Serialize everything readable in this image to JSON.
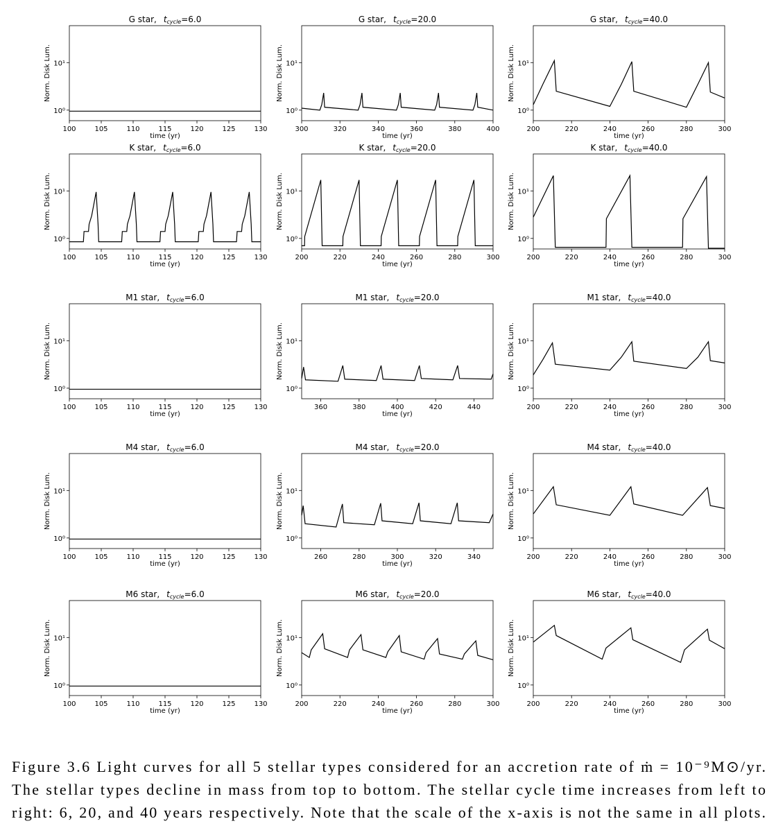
{
  "chart_data": [
    {
      "type": "line",
      "title": {
        "star": "G star,",
        "t": "t",
        "sub": "cycle",
        "eq": "=6.0"
      },
      "xlabel": "time (yr)",
      "ylabel": "Norm. Disk Lum.",
      "log_y": true,
      "color": "#000000",
      "xlim": [
        100,
        130
      ],
      "xticks": [
        100,
        105,
        110,
        115,
        120,
        125,
        130
      ],
      "ylim": [
        0.6,
        60
      ],
      "yticks": [
        {
          "value": 1,
          "label": "10⁰"
        },
        {
          "value": 10,
          "label": "10¹"
        }
      ],
      "x": [
        100,
        130
      ],
      "values": [
        0.95,
        0.95
      ]
    },
    {
      "type": "line",
      "title": {
        "star": "G star,",
        "t": "t",
        "sub": "cycle",
        "eq": "=20.0"
      },
      "xlabel": "time (yr)",
      "ylabel": "Norm. Disk Lum.",
      "log_y": true,
      "color": "#000000",
      "xlim": [
        300,
        400
      ],
      "xticks": [
        300,
        320,
        340,
        360,
        380,
        400
      ],
      "ylim": [
        0.6,
        60
      ],
      "yticks": [
        {
          "value": 1,
          "label": "10⁰"
        },
        {
          "value": 10,
          "label": "10¹"
        }
      ],
      "x": [
        300,
        309.5,
        310.5,
        311.5,
        312,
        329.5,
        330.5,
        331.5,
        332,
        349.5,
        350.5,
        351.5,
        352,
        369.5,
        370.5,
        371.5,
        372,
        389.5,
        390.5,
        391.5,
        392,
        400
      ],
      "values": [
        1.1,
        1.0,
        1.3,
        2.3,
        1.15,
        1.0,
        1.3,
        2.3,
        1.15,
        1.0,
        1.3,
        2.3,
        1.15,
        1.0,
        1.3,
        2.3,
        1.15,
        1.0,
        1.3,
        2.3,
        1.15,
        1.0
      ]
    },
    {
      "type": "line",
      "title": {
        "star": "G star,",
        "t": "t",
        "sub": "cycle",
        "eq": "=40.0"
      },
      "xlabel": "time (yr)",
      "ylabel": "Norm. Disk Lum.",
      "log_y": true,
      "color": "#000000",
      "xlim": [
        200,
        300
      ],
      "xticks": [
        200,
        220,
        240,
        260,
        280,
        300
      ],
      "ylim": [
        0.6,
        60
      ],
      "yticks": [
        {
          "value": 1,
          "label": "10⁰"
        },
        {
          "value": 10,
          "label": "10¹"
        }
      ],
      "x": [
        200,
        205,
        211,
        212,
        240,
        246,
        251.5,
        252.5,
        280,
        286,
        291.5,
        292.5,
        300
      ],
      "values": [
        1.3,
        3.5,
        11,
        2.5,
        1.2,
        3.5,
        10.5,
        2.5,
        1.15,
        3.5,
        10,
        2.4,
        1.8
      ]
    },
    {
      "type": "line",
      "title": {
        "star": "K star,",
        "t": "t",
        "sub": "cycle",
        "eq": "=6.0"
      },
      "xlabel": "time (yr)",
      "ylabel": "Norm. Disk Lum.",
      "log_y": true,
      "color": "#000000",
      "xlim": [
        100,
        130
      ],
      "xticks": [
        100,
        105,
        110,
        115,
        120,
        125,
        130
      ],
      "ylim": [
        0.6,
        60
      ],
      "yticks": [
        {
          "value": 1,
          "label": "10⁰"
        },
        {
          "value": 10,
          "label": "10¹"
        }
      ],
      "x": [
        100,
        102.2,
        102.3,
        103.0,
        103.1,
        103.5,
        104.2,
        104.5,
        104.6,
        108.2,
        108.3,
        109.0,
        109.1,
        109.5,
        110.2,
        110.5,
        110.6,
        114.2,
        114.3,
        115.0,
        115.1,
        115.5,
        116.2,
        116.5,
        116.6,
        120.2,
        120.3,
        121.0,
        121.1,
        121.5,
        122.2,
        122.5,
        122.6,
        126.2,
        126.3,
        127.0,
        127.1,
        127.5,
        128.2,
        128.5,
        128.6,
        130
      ],
      "values": [
        0.85,
        0.85,
        1.4,
        1.4,
        2.0,
        3,
        9.5,
        2,
        0.85,
        0.85,
        1.4,
        1.4,
        2.0,
        3,
        9.5,
        2,
        0.85,
        0.85,
        1.4,
        1.4,
        2.0,
        3,
        9.5,
        2,
        0.85,
        0.85,
        1.4,
        1.4,
        2.0,
        3,
        9.5,
        2,
        0.85,
        0.85,
        1.4,
        1.4,
        2.0,
        3,
        9.5,
        2,
        0.85,
        0.85
      ]
    },
    {
      "type": "line",
      "title": {
        "star": "K star,",
        "t": "t",
        "sub": "cycle",
        "eq": "=20.0"
      },
      "xlabel": "time (yr)",
      "ylabel": "Norm. Disk Lum.",
      "log_y": true,
      "color": "#000000",
      "xlim": [
        200,
        300
      ],
      "xticks": [
        200,
        220,
        240,
        260,
        280,
        300
      ],
      "ylim": [
        0.6,
        60
      ],
      "yticks": [
        {
          "value": 1,
          "label": "10⁰"
        },
        {
          "value": 10,
          "label": "10¹"
        }
      ],
      "x": [
        200,
        201.5,
        201.6,
        210,
        210.7,
        221.5,
        221.6,
        230,
        230.7,
        241.5,
        241.6,
        250,
        250.7,
        261.5,
        261.6,
        270,
        270.7,
        281.5,
        281.6,
        290,
        290.7,
        300
      ],
      "values": [
        0.7,
        0.7,
        1.1,
        17,
        0.7,
        0.7,
        1.1,
        17,
        0.7,
        0.7,
        1.1,
        17,
        0.7,
        0.7,
        1.1,
        17,
        0.7,
        0.7,
        1.1,
        17,
        0.7,
        0.7
      ]
    },
    {
      "type": "line",
      "title": {
        "star": "K star,",
        "t": "t",
        "sub": "cycle",
        "eq": "=40.0"
      },
      "xlabel": "time (yr)",
      "ylabel": "Norm. Disk Lum.",
      "log_y": true,
      "color": "#000000",
      "xlim": [
        200,
        300
      ],
      "xticks": [
        200,
        220,
        240,
        260,
        280,
        300
      ],
      "ylim": [
        0.6,
        60
      ],
      "yticks": [
        {
          "value": 1,
          "label": "10⁰"
        },
        {
          "value": 10,
          "label": "10¹"
        }
      ],
      "x": [
        200,
        210.5,
        211.5,
        238,
        238.2,
        250.5,
        251.5,
        278,
        278.2,
        290.5,
        291.5,
        300
      ],
      "values": [
        2.8,
        21,
        0.65,
        0.65,
        2.6,
        21,
        0.65,
        0.65,
        2.6,
        20,
        0.62,
        0.62
      ]
    },
    {
      "type": "line",
      "title": {
        "star": "M1 star,",
        "t": "t",
        "sub": "cycle",
        "eq": "=6.0"
      },
      "xlabel": "time (yr)",
      "ylabel": "Norm. Disk Lum.",
      "log_y": true,
      "color": "#000000",
      "xlim": [
        100,
        130
      ],
      "xticks": [
        100,
        105,
        110,
        115,
        120,
        125,
        130
      ],
      "ylim": [
        0.6,
        60
      ],
      "yticks": [
        {
          "value": 1,
          "label": "10⁰"
        },
        {
          "value": 10,
          "label": "10¹"
        }
      ],
      "x": [
        100,
        130
      ],
      "values": [
        0.95,
        0.95
      ]
    },
    {
      "type": "line",
      "title": {
        "star": "M1 star,",
        "t": "t",
        "sub": "cycle",
        "eq": "=20.0"
      },
      "xlabel": "time (yr)",
      "ylabel": "Norm. Disk Lum.",
      "log_y": true,
      "color": "#000000",
      "xlim": [
        350,
        450
      ],
      "xticks": [
        360,
        380,
        400,
        420,
        440
      ],
      "ylim": [
        0.6,
        60
      ],
      "yticks": [
        {
          "value": 1,
          "label": "10⁰"
        },
        {
          "value": 10,
          "label": "10¹"
        }
      ],
      "x": [
        350,
        351,
        352,
        369,
        371.5,
        372.5,
        389,
        391.5,
        392.5,
        409,
        411.5,
        412.5,
        429,
        431.5,
        432.5,
        449,
        450
      ],
      "values": [
        1.6,
        2.8,
        1.5,
        1.4,
        3,
        1.55,
        1.45,
        3,
        1.55,
        1.45,
        3,
        1.6,
        1.5,
        3,
        1.6,
        1.55,
        2.0
      ]
    },
    {
      "type": "line",
      "title": {
        "star": "M1 star,",
        "t": "t",
        "sub": "cycle",
        "eq": "=40.0"
      },
      "xlabel": "time (yr)",
      "ylabel": "Norm. Disk Lum.",
      "log_y": true,
      "color": "#000000",
      "xlim": [
        200,
        300
      ],
      "xticks": [
        200,
        220,
        240,
        260,
        280,
        300
      ],
      "ylim": [
        0.6,
        60
      ],
      "yticks": [
        {
          "value": 1,
          "label": "10⁰"
        },
        {
          "value": 10,
          "label": "10¹"
        }
      ],
      "x": [
        200,
        205,
        210,
        211.5,
        240,
        246,
        251.5,
        252.5,
        280,
        286,
        291.5,
        292.5,
        300
      ],
      "values": [
        1.9,
        4,
        9,
        3.2,
        2.4,
        4.5,
        9.5,
        3.7,
        2.6,
        4.5,
        9.5,
        3.8,
        3.4
      ]
    },
    {
      "type": "line",
      "title": {
        "star": "M4 star,",
        "t": "t",
        "sub": "cycle",
        "eq": "=6.0"
      },
      "xlabel": "time (yr)",
      "ylabel": "Norm. Disk Lum.",
      "log_y": true,
      "color": "#000000",
      "xlim": [
        100,
        130
      ],
      "xticks": [
        100,
        105,
        110,
        115,
        120,
        125,
        130
      ],
      "ylim": [
        0.6,
        60
      ],
      "yticks": [
        {
          "value": 1,
          "label": "10⁰"
        },
        {
          "value": 10,
          "label": "10¹"
        }
      ],
      "x": [
        100,
        130
      ],
      "values": [
        0.95,
        0.95
      ]
    },
    {
      "type": "line",
      "title": {
        "star": "M4 star,",
        "t": "t",
        "sub": "cycle",
        "eq": "=20.0"
      },
      "xlabel": "time (yr)",
      "ylabel": "Norm. Disk Lum.",
      "log_y": true,
      "color": "#000000",
      "xlim": [
        250,
        350
      ],
      "xticks": [
        260,
        280,
        300,
        320,
        340
      ],
      "ylim": [
        0.6,
        60
      ],
      "yticks": [
        {
          "value": 1,
          "label": "10⁰"
        },
        {
          "value": 10,
          "label": "10¹"
        }
      ],
      "x": [
        250,
        250.8,
        251.8,
        268,
        271.3,
        272,
        288,
        291.3,
        292,
        308,
        311.3,
        312,
        328,
        331.3,
        332,
        348,
        350
      ],
      "values": [
        3,
        4.8,
        2.0,
        1.7,
        5.2,
        2.1,
        1.9,
        5.4,
        2.3,
        2.0,
        5.5,
        2.3,
        2.0,
        5.5,
        2.3,
        2.1,
        3.2
      ]
    },
    {
      "type": "line",
      "title": {
        "star": "M4 star,",
        "t": "t",
        "sub": "cycle",
        "eq": "=40.0"
      },
      "xlabel": "time (yr)",
      "ylabel": "Norm. Disk Lum.",
      "log_y": true,
      "color": "#000000",
      "xlim": [
        200,
        300
      ],
      "xticks": [
        200,
        220,
        240,
        260,
        280,
        300
      ],
      "ylim": [
        0.6,
        60
      ],
      "yticks": [
        {
          "value": 1,
          "label": "10⁰"
        },
        {
          "value": 10,
          "label": "10¹"
        }
      ],
      "x": [
        200,
        210.5,
        212,
        240,
        251,
        252.5,
        278,
        291,
        292.5,
        300
      ],
      "values": [
        3.2,
        12,
        5,
        3,
        12,
        5.2,
        3,
        11.5,
        4.8,
        4.2
      ]
    },
    {
      "type": "line",
      "title": {
        "star": "M6 star,",
        "t": "t",
        "sub": "cycle",
        "eq": "=6.0"
      },
      "xlabel": "time (yr)",
      "ylabel": "Norm. Disk Lum.",
      "log_y": true,
      "color": "#000000",
      "xlim": [
        100,
        130
      ],
      "xticks": [
        100,
        105,
        110,
        115,
        120,
        125,
        130
      ],
      "ylim": [
        0.6,
        60
      ],
      "yticks": [
        {
          "value": 1,
          "label": "10⁰"
        },
        {
          "value": 10,
          "label": "10¹"
        }
      ],
      "x": [
        100,
        130
      ],
      "values": [
        0.95,
        0.95
      ]
    },
    {
      "type": "line",
      "title": {
        "star": "M6 star,",
        "t": "t",
        "sub": "cycle",
        "eq": "=20.0"
      },
      "xlabel": "time (yr)",
      "ylabel": "Norm. Disk Lum.",
      "log_y": true,
      "color": "#000000",
      "xlim": [
        200,
        300
      ],
      "xticks": [
        200,
        220,
        240,
        260,
        280,
        300
      ],
      "ylim": [
        0.6,
        60
      ],
      "yticks": [
        {
          "value": 1,
          "label": "10⁰"
        },
        {
          "value": 10,
          "label": "10¹"
        }
      ],
      "x": [
        200,
        204,
        205,
        211,
        212,
        224,
        225,
        231,
        232,
        244,
        245,
        251,
        252,
        264,
        265,
        271,
        272,
        284,
        285,
        291,
        292,
        300
      ],
      "values": [
        4.8,
        3.8,
        5.5,
        12,
        5.8,
        3.8,
        5.5,
        11.5,
        5.5,
        3.8,
        5,
        11,
        5,
        3.5,
        4.8,
        9.5,
        4.5,
        3.5,
        4.5,
        8.5,
        4.2,
        3.4
      ]
    },
    {
      "type": "line",
      "title": {
        "star": "M6 star,",
        "t": "t",
        "sub": "cycle",
        "eq": "=40.0"
      },
      "xlabel": "time (yr)",
      "ylabel": "Norm. Disk Lum.",
      "log_y": true,
      "color": "#000000",
      "xlim": [
        200,
        300
      ],
      "xticks": [
        200,
        220,
        240,
        260,
        280,
        300
      ],
      "ylim": [
        0.6,
        60
      ],
      "yticks": [
        {
          "value": 1,
          "label": "10⁰"
        },
        {
          "value": 10,
          "label": "10¹"
        }
      ],
      "x": [
        200,
        211,
        212,
        236,
        238,
        251,
        252,
        277,
        279,
        291,
        292,
        300
      ],
      "values": [
        8,
        18,
        11,
        3.5,
        6,
        16,
        9,
        3,
        5.5,
        15,
        8.8,
        5.8
      ]
    }
  ],
  "caption": [
    "Figure 3.6 Light curves for all 5 stellar types considered for an accretion rate of ṁ = 10⁻⁹M⊙/yr.",
    "The stellar types decline in mass from top to bottom. The stellar cycle time increases from left to",
    "right: 6, 20, and 40 years respectively. Note that the scale of the x-axis is not the same in all plots."
  ]
}
